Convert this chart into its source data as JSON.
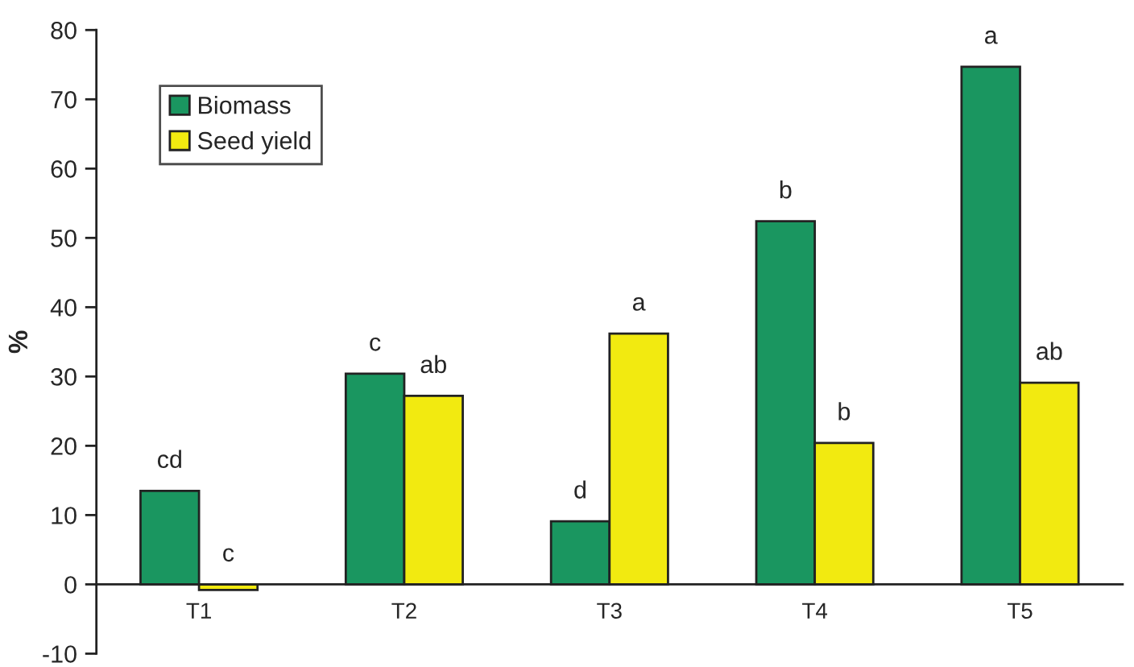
{
  "chart_data": {
    "type": "bar",
    "ylabel": "%",
    "categories": [
      "T1",
      "T2",
      "T3",
      "T4",
      "T5"
    ],
    "series": [
      {
        "name": "Biomass",
        "color": "#1a9660",
        "values": [
          13.5,
          30.4,
          9.1,
          52.4,
          74.7
        ],
        "value_labels": [
          "cd",
          "c",
          "d",
          "b",
          "a"
        ]
      },
      {
        "name": "Seed yield",
        "color": "#f2ea10",
        "values": [
          -0.8,
          27.2,
          36.2,
          20.4,
          29.1
        ],
        "value_labels": [
          "c",
          "ab",
          "a",
          "b",
          "ab"
        ]
      }
    ],
    "ylim": [
      -10,
      80
    ],
    "yticks": [
      -10,
      0,
      10,
      20,
      30,
      40,
      50,
      60,
      70,
      80
    ],
    "grid": false,
    "legend": "top left"
  }
}
